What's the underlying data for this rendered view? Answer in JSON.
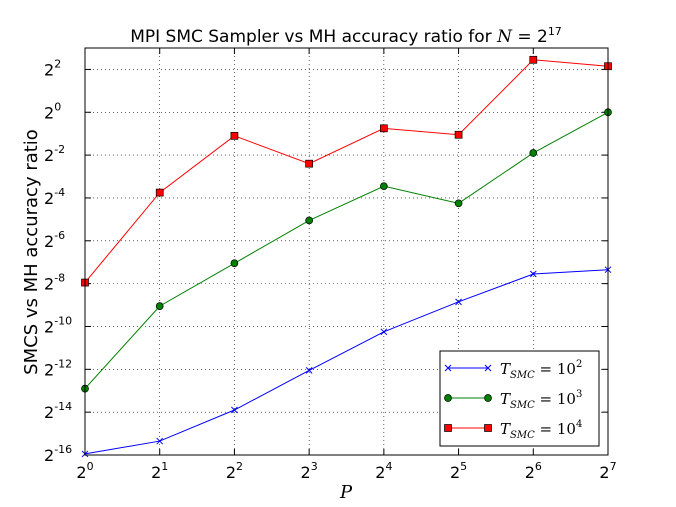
{
  "chart_data": {
    "type": "line",
    "title": {
      "prefix": "MPI SMC Sampler vs MH accuracy ratio for ",
      "math_var": "N",
      "math_eq": " = 2",
      "math_exp": "17"
    },
    "xlabel": "P",
    "ylabel": "SMCS vs MH accuracy ratio",
    "x_scale": "log2",
    "y_scale": "log2",
    "xlim": [
      1,
      128
    ],
    "ylim_exponents": [
      -16,
      3
    ],
    "x_ticks": [
      {
        "base": "2",
        "exp": "0"
      },
      {
        "base": "2",
        "exp": "1"
      },
      {
        "base": "2",
        "exp": "2"
      },
      {
        "base": "2",
        "exp": "3"
      },
      {
        "base": "2",
        "exp": "4"
      },
      {
        "base": "2",
        "exp": "5"
      },
      {
        "base": "2",
        "exp": "6"
      },
      {
        "base": "2",
        "exp": "7"
      }
    ],
    "y_ticks": [
      {
        "base": "2",
        "exp": "-16"
      },
      {
        "base": "2",
        "exp": "-14"
      },
      {
        "base": "2",
        "exp": "-12"
      },
      {
        "base": "2",
        "exp": "-10"
      },
      {
        "base": "2",
        "exp": "-8"
      },
      {
        "base": "2",
        "exp": "-6"
      },
      {
        "base": "2",
        "exp": "-4"
      },
      {
        "base": "2",
        "exp": "-2"
      },
      {
        "base": "2",
        "exp": "0"
      },
      {
        "base": "2",
        "exp": "2"
      }
    ],
    "x": [
      1,
      2,
      4,
      8,
      16,
      32,
      64,
      128
    ],
    "series": [
      {
        "name": "T_SMC = 10^2",
        "legend": {
          "var": "T",
          "sub": "SMC",
          "eq": " = 10",
          "exp": "2"
        },
        "color": "#0000ff",
        "marker": "x",
        "log2_values": [
          -15.95,
          -15.35,
          -13.9,
          -12.05,
          -10.25,
          -8.85,
          -7.55,
          -7.35
        ]
      },
      {
        "name": "T_SMC = 10^3",
        "legend": {
          "var": "T",
          "sub": "SMC",
          "eq": " = 10",
          "exp": "3"
        },
        "color": "#008000",
        "marker": "circle",
        "log2_values": [
          -12.9,
          -9.05,
          -7.05,
          -5.05,
          -3.45,
          -4.25,
          -1.9,
          0.0
        ]
      },
      {
        "name": "T_SMC = 10^4",
        "legend": {
          "var": "T",
          "sub": "SMC",
          "eq": " = 10",
          "exp": "4"
        },
        "color": "#ff0000",
        "marker": "square",
        "log2_values": [
          -7.95,
          -3.75,
          -1.1,
          -2.4,
          -0.75,
          -1.05,
          2.45,
          2.15
        ]
      }
    ],
    "grid": true,
    "grid_style": "dotted",
    "legend_position": "lower-right"
  }
}
